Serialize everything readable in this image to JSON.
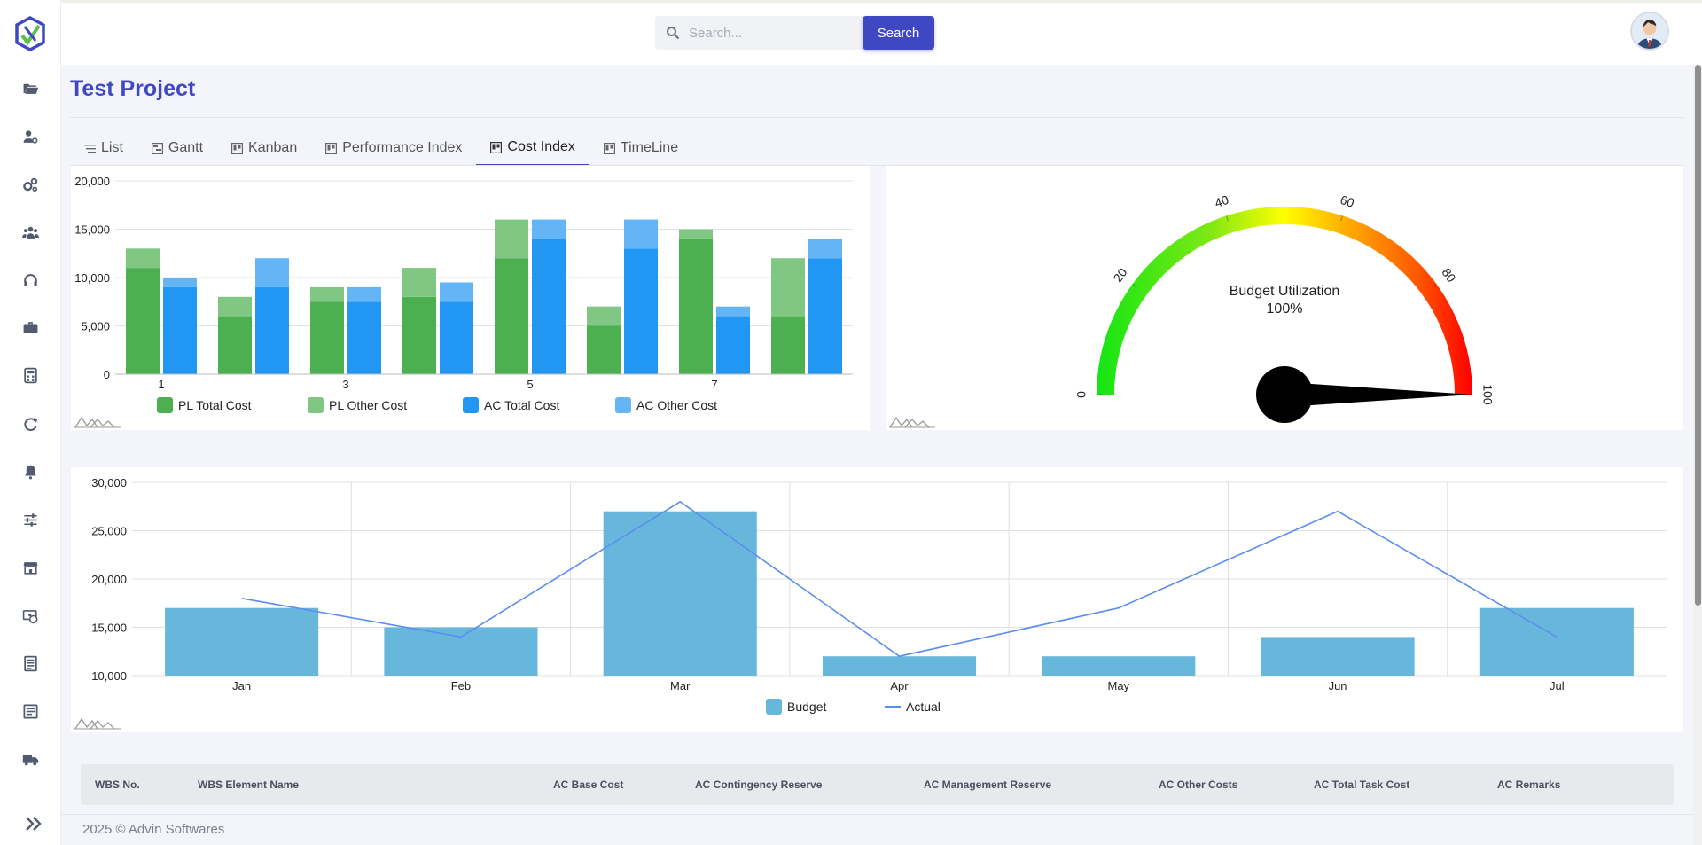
{
  "header": {
    "search_placeholder": "Search...",
    "search_button": "Search"
  },
  "page": {
    "title": "Test Project"
  },
  "tabs": [
    {
      "label": "List",
      "icon": "list-icon"
    },
    {
      "label": "Gantt",
      "icon": "gantt-icon"
    },
    {
      "label": "Kanban",
      "icon": "kanban-icon"
    },
    {
      "label": "Performance Index",
      "icon": "chart-icon"
    },
    {
      "label": "Cost Index",
      "icon": "chart-icon",
      "active": true
    },
    {
      "label": "TimeLine",
      "icon": "chart-icon"
    }
  ],
  "sidebar_icons": [
    "folder-icon",
    "user-settings-icon",
    "gears-icon",
    "team-icon",
    "headset-icon",
    "briefcase-icon",
    "calculator-icon",
    "refresh-icon",
    "bell-icon",
    "sliders-icon",
    "store-icon",
    "money-icon",
    "document-icon",
    "list-document-icon",
    "truck-icon",
    "expand-icon"
  ],
  "chart_data": [
    {
      "type": "bar",
      "stacked": true,
      "x": [
        1,
        2,
        3,
        4,
        5,
        6,
        7,
        8
      ],
      "xticks": [
        "1",
        "3",
        "5",
        "7"
      ],
      "yticks": [
        "0",
        "5,000",
        "10,000",
        "15,000",
        "20,000"
      ],
      "ylim": [
        0,
        20000
      ],
      "groups": [
        {
          "name": "PL",
          "series": [
            {
              "name": "PL Total Cost",
              "color": "#4caf50",
              "values": [
                11000,
                6000,
                7500,
                8000,
                12000,
                5000,
                14000,
                6000
              ]
            },
            {
              "name": "PL Other Cost",
              "color": "#81c784",
              "values": [
                2000,
                2000,
                1500,
                3000,
                4000,
                2000,
                1000,
                6000
              ]
            }
          ]
        },
        {
          "name": "AC",
          "series": [
            {
              "name": "AC Total Cost",
              "color": "#2196f3",
              "values": [
                9000,
                9000,
                7500,
                7500,
                14000,
                13000,
                6000,
                12000
              ]
            },
            {
              "name": "AC Other Cost",
              "color": "#64b5f6",
              "values": [
                1000,
                3000,
                1500,
                2000,
                2000,
                3000,
                1000,
                2000
              ]
            }
          ]
        }
      ],
      "legend": [
        "PL Total Cost",
        "PL Other Cost",
        "AC Total Cost",
        "AC Other Cost"
      ],
      "legend_position": "bottom"
    },
    {
      "type": "gauge",
      "title": "Budget Utilization",
      "value": 100,
      "value_label": "100%",
      "min": 0,
      "max": 100,
      "ticks": [
        "0",
        "20",
        "40",
        "60",
        "80",
        "100"
      ]
    },
    {
      "type": "bar+line",
      "categories": [
        "Jan",
        "Feb",
        "Mar",
        "Apr",
        "May",
        "Jun",
        "Jul"
      ],
      "ylim": [
        10000,
        30000
      ],
      "yticks": [
        "10,000",
        "15,000",
        "20,000",
        "25,000",
        "30,000"
      ],
      "grid": true,
      "series": [
        {
          "name": "Budget",
          "type": "bar",
          "color": "#67b7dc",
          "values": [
            17000,
            15000,
            27000,
            12000,
            12000,
            14000,
            17000
          ]
        },
        {
          "name": "Actual",
          "type": "line",
          "color": "#5b8def",
          "values": [
            18000,
            14000,
            28000,
            12000,
            17000,
            27000,
            14000
          ]
        }
      ],
      "legend_position": "bottom"
    }
  ],
  "table": {
    "columns": [
      "WBS No.",
      "WBS Element Name",
      "AC Base Cost",
      "AC Contingency Reserve",
      "AC Management Reserve",
      "AC Other Costs",
      "AC Total Task Cost",
      "AC Remarks"
    ]
  },
  "footer": {
    "text": "2025 © Advin Softwares"
  }
}
